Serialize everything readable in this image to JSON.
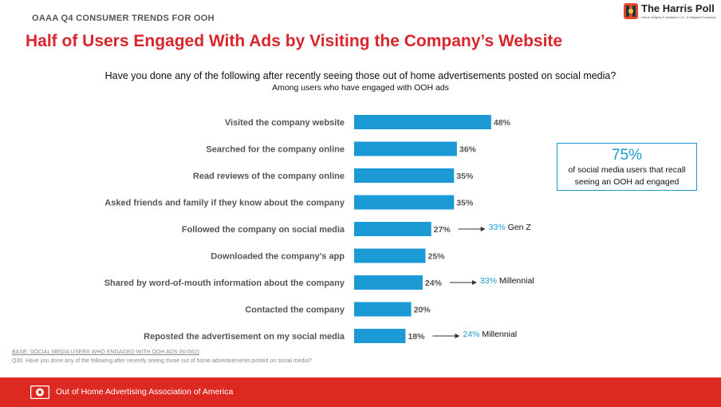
{
  "header": {
    "eyebrow": "OAAA Q4 CONSUMER TRENDS FOR OOH",
    "title": "Half of Users Engaged With Ads by Visiting the Company’s Website",
    "brand_name": "The Harris Poll",
    "brand_sub": "Harris Insights & Analytics LLC, A Stagwell Company"
  },
  "question": "Have you done any of the following after recently seeing those out of home advertisements posted on social media?",
  "subquestion": "Among users who have engaged with OOH ads",
  "callout": {
    "value": "75%",
    "text_line1": "of social media users that recall",
    "text_line2": "seeing an OOH ad engaged"
  },
  "notes": {
    "base": "BASE:  SOCIAL MEDIA USERS WHO ENGAGED WITH OOH ADS (N=562)",
    "question": "Q30. Have you done any of the following after recently seeing those out of home advertisements posted on social media?"
  },
  "footer": {
    "text": "Out of Home Advertising Association of America"
  },
  "colors": {
    "bar": "#1b9ad6",
    "accent_red": "#d8262c",
    "footer_red": "#dc2a22",
    "annotation_blue": "#1b9ad6"
  },
  "chart_data": {
    "type": "bar",
    "orientation": "horizontal",
    "categories": [
      "Visited the company website",
      "Searched for the company online",
      "Read reviews of the company online",
      "Asked friends and family if they know about the company",
      "Followed the company on social media",
      "Downloaded the company's app",
      "Shared by word-of-mouth information about the company",
      "Contacted the company",
      "Reposted the advertisement on my social media"
    ],
    "values": [
      48,
      36,
      35,
      35,
      27,
      25,
      24,
      20,
      18
    ],
    "value_labels": [
      "48%",
      "36%",
      "35%",
      "35%",
      "27%",
      "25%",
      "24%",
      "20%",
      "18%"
    ],
    "annotations": [
      {
        "category_index": 4,
        "pct": "33%",
        "group": "Gen Z"
      },
      {
        "category_index": 6,
        "pct": "33%",
        "group": "Millennial"
      },
      {
        "category_index": 8,
        "pct": "24%",
        "group": "Millennial"
      }
    ],
    "xlim": [
      0,
      100
    ],
    "grid": false,
    "legend": "none"
  }
}
